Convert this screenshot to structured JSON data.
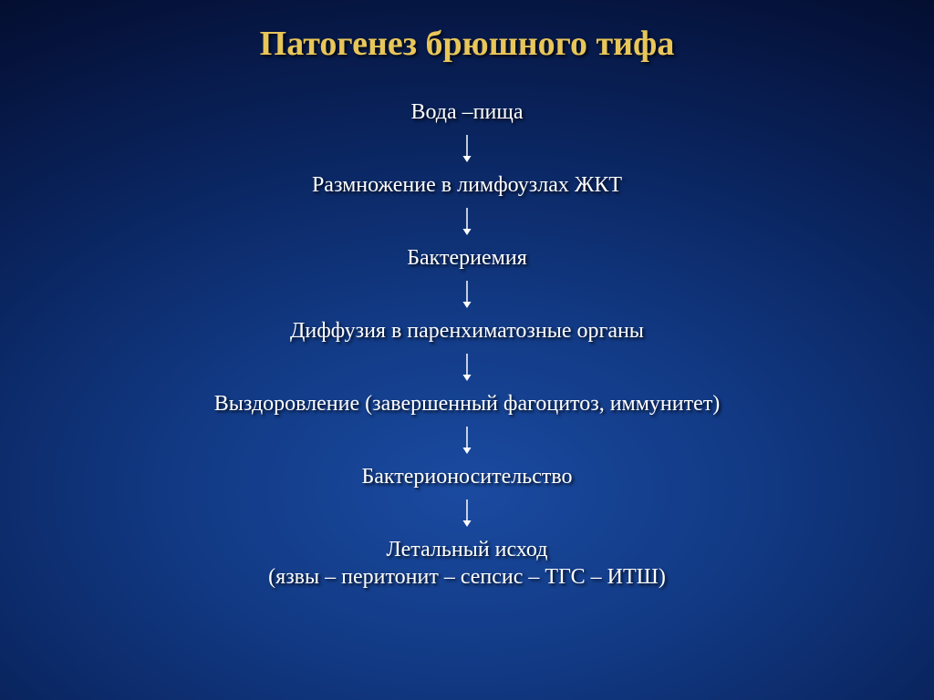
{
  "title": {
    "text": "Патогенез брюшного тифа",
    "color": "#e8c65a",
    "fontsize": 38
  },
  "steps": {
    "s1": "Вода –пища",
    "s2": "Размножение в лимфоузлах ЖКТ",
    "s3": "Бактериемия",
    "s4": "Диффузия в паренхиматозные органы",
    "s5": "Выздоровление (завершенный фагоцитоз, иммунитет)",
    "s6": "Бактерионосительство",
    "s7": "Летальный исход",
    "s7sub": "(язвы – перитонит – сепсис – ТГС – ИТШ)"
  },
  "step_style": {
    "color": "#ffffff",
    "fontsize": 24
  },
  "arrow": {
    "color": "#ffffff",
    "length": 30,
    "stroke_width": 1.5,
    "head_size": 7
  }
}
